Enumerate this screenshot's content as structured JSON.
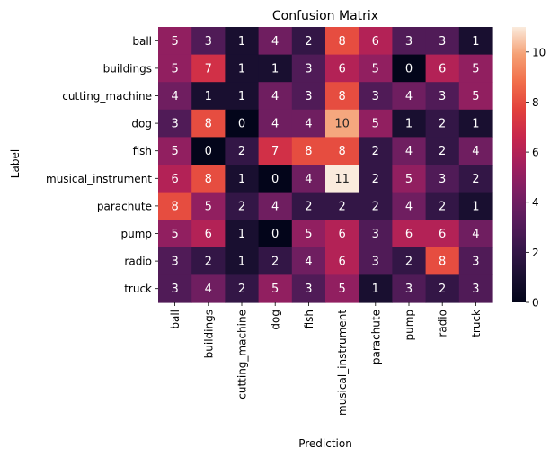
{
  "chart_data": {
    "type": "heatmap",
    "title": "Confusion Matrix",
    "xlabel": "Prediction",
    "ylabel": "Label",
    "rows": [
      "ball",
      "buildings",
      "cutting_machine",
      "dog",
      "fish",
      "musical_instrument",
      "parachute",
      "pump",
      "radio",
      "truck"
    ],
    "columns": [
      "ball",
      "buildings",
      "cutting_machine",
      "dog",
      "fish",
      "musical_instrument",
      "parachute",
      "pump",
      "radio",
      "truck"
    ],
    "values": [
      [
        5,
        3,
        1,
        4,
        2,
        8,
        6,
        3,
        3,
        1
      ],
      [
        5,
        7,
        1,
        1,
        3,
        6,
        5,
        0,
        6,
        5
      ],
      [
        4,
        1,
        1,
        4,
        3,
        8,
        3,
        4,
        3,
        5
      ],
      [
        3,
        8,
        0,
        4,
        4,
        10,
        5,
        1,
        2,
        1
      ],
      [
        5,
        0,
        2,
        7,
        8,
        8,
        2,
        4,
        2,
        4
      ],
      [
        6,
        8,
        1,
        0,
        4,
        11,
        2,
        5,
        3,
        2
      ],
      [
        8,
        5,
        2,
        4,
        2,
        2,
        2,
        4,
        2,
        1
      ],
      [
        5,
        6,
        1,
        0,
        5,
        6,
        3,
        6,
        6,
        4
      ],
      [
        3,
        2,
        1,
        2,
        4,
        6,
        3,
        2,
        8,
        3
      ],
      [
        3,
        4,
        2,
        5,
        3,
        5,
        1,
        3,
        2,
        3
      ]
    ],
    "vmin": 0,
    "vmax": 11,
    "colorbar_ticks": [
      0,
      2,
      4,
      6,
      8,
      10
    ],
    "colormap": "rocket",
    "grid": false
  }
}
